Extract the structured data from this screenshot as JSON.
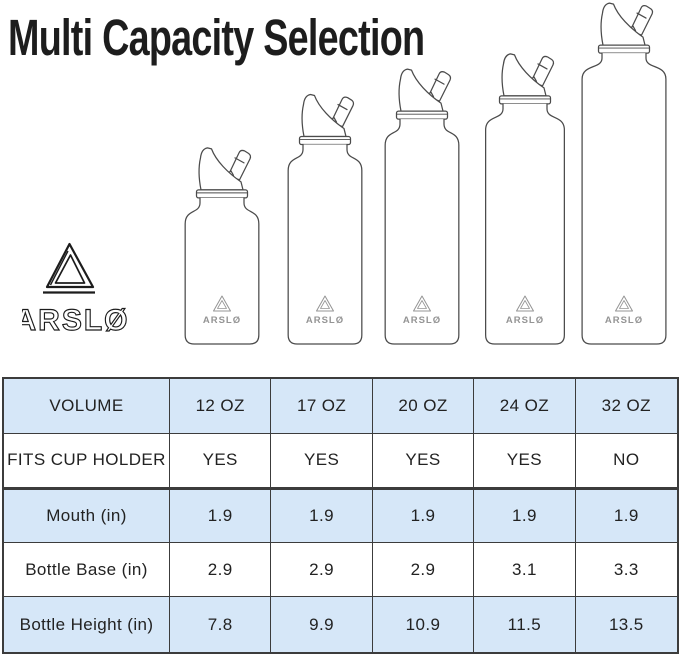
{
  "title": "Multi Capacity Selection",
  "brand": {
    "name": "ARSLØ"
  },
  "bottles": [
    {
      "volume": "12 OZ",
      "fits_cup_holder": "YES",
      "mouth_in": 1.9,
      "base_in": 2.9,
      "height_in": 7.8
    },
    {
      "volume": "17 OZ",
      "fits_cup_holder": "YES",
      "mouth_in": 1.9,
      "base_in": 2.9,
      "height_in": 9.9
    },
    {
      "volume": "20 OZ",
      "fits_cup_holder": "YES",
      "mouth_in": 1.9,
      "base_in": 2.9,
      "height_in": 10.9
    },
    {
      "volume": "24 OZ",
      "fits_cup_holder": "YES",
      "mouth_in": 1.9,
      "base_in": 3.1,
      "height_in": 11.5
    },
    {
      "volume": "32 OZ",
      "fits_cup_holder": "NO",
      "mouth_in": 1.9,
      "base_in": 3.3,
      "height_in": 13.5
    }
  ],
  "table": {
    "row_labels": [
      "VOLUME",
      "FITS CUP HOLDER",
      "Mouth (in)",
      "Bottle Base (in)",
      "Bottle Height (in)"
    ],
    "row_fields": [
      "volume",
      "fits_cup_holder",
      "mouth_in",
      "base_in",
      "height_in"
    ],
    "shaded_rows": [
      0,
      2,
      4
    ]
  },
  "chart_data": {
    "type": "table",
    "title": "Multi Capacity Selection",
    "categories": [
      "12 OZ",
      "17 OZ",
      "20 OZ",
      "24 OZ",
      "32 OZ"
    ],
    "series": [
      {
        "name": "FITS CUP HOLDER",
        "values": [
          "YES",
          "YES",
          "YES",
          "YES",
          "NO"
        ]
      },
      {
        "name": "Mouth (in)",
        "values": [
          1.9,
          1.9,
          1.9,
          1.9,
          1.9
        ]
      },
      {
        "name": "Bottle Base (in)",
        "values": [
          2.9,
          2.9,
          2.9,
          3.1,
          3.3
        ]
      },
      {
        "name": "Bottle Height (in)",
        "values": [
          7.8,
          9.9,
          10.9,
          11.5,
          13.5
        ]
      }
    ]
  },
  "colors": {
    "accent_blue": "#d6e7f8",
    "table_border": "#3c3c3c",
    "line_art": "#4b4b4b",
    "title_text": "#1d1d1d",
    "bottle_logo_gray": "#949494"
  }
}
